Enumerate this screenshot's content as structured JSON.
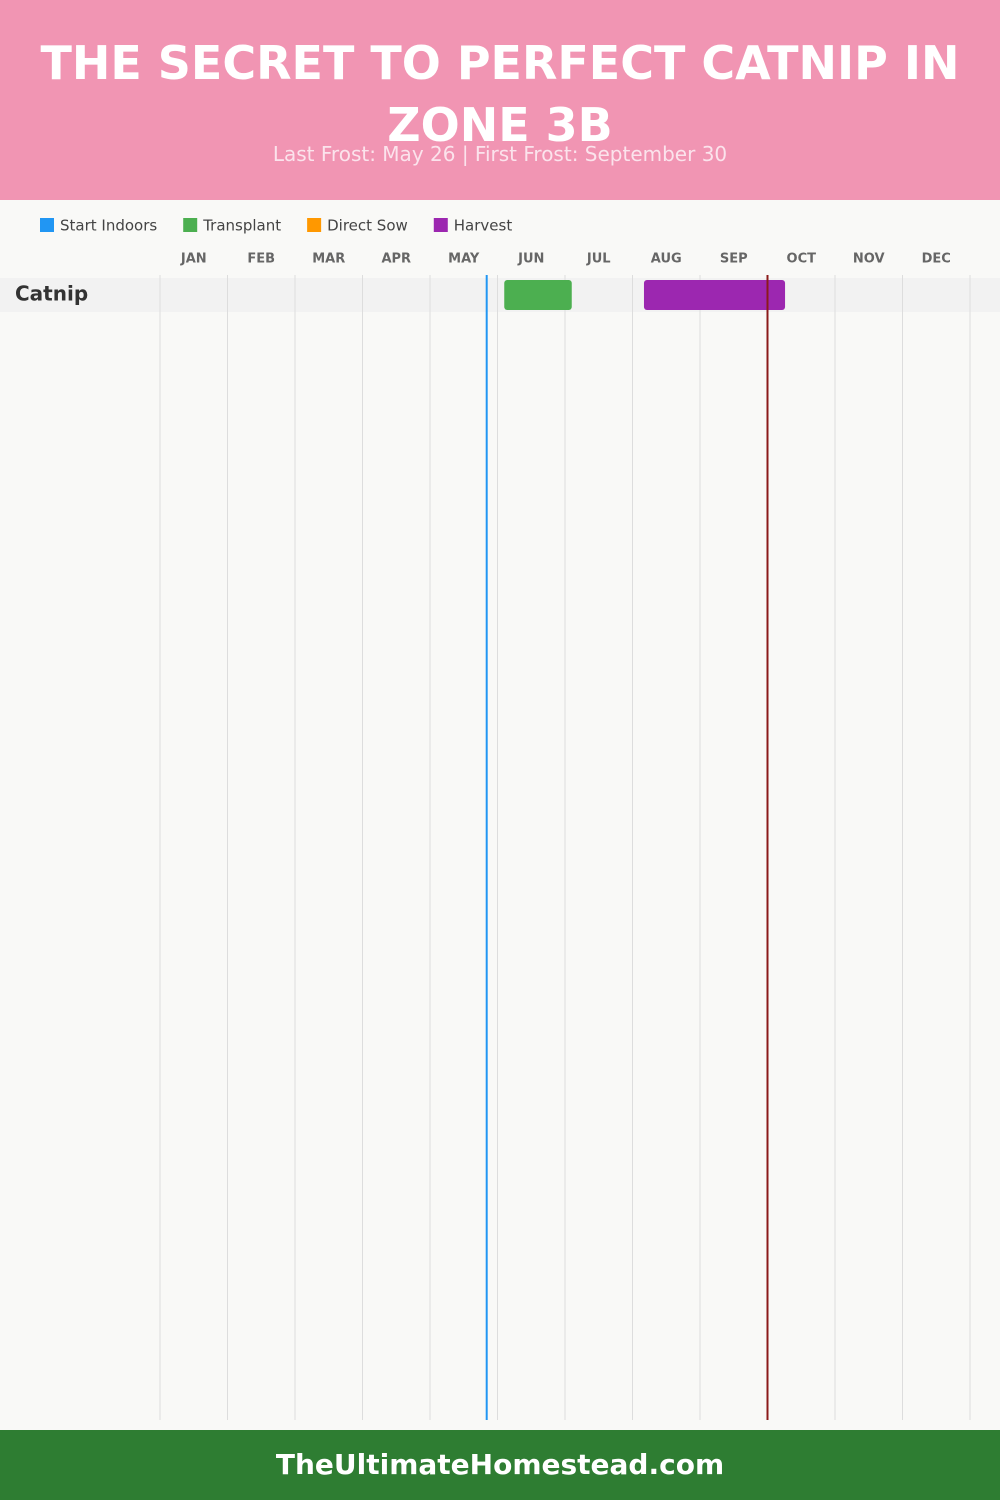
{
  "chart_data": {
    "type": "gantt",
    "title": "THE SECRET TO PERFECT CATNIP IN ZONE 3B",
    "subtitle": "Last Frost: May 26 | First Frost: September 30",
    "months": [
      "JAN",
      "FEB",
      "MAR",
      "APR",
      "MAY",
      "JUN",
      "JUL",
      "AUG",
      "SEP",
      "OCT",
      "NOV",
      "DEC"
    ],
    "xlim": [
      0,
      12
    ],
    "rows": [
      "Catnip"
    ],
    "series": [
      {
        "name": "Start Indoors",
        "color": "#2196f3",
        "start": [
          null
        ],
        "end": [
          null
        ]
      },
      {
        "name": "Transplant",
        "color": "#4caf50",
        "start": [
          5.1
        ],
        "end": [
          6.1
        ]
      },
      {
        "name": "Direct Sow",
        "color": "#ff9800",
        "start": [
          null
        ],
        "end": [
          null
        ]
      },
      {
        "name": "Harvest",
        "color": "#9c27b0",
        "start": [
          7.17
        ],
        "end": [
          9.26
        ]
      }
    ],
    "frost_lines": [
      {
        "x": 4.84,
        "color": "#2196f3"
      },
      {
        "x": 9.0,
        "color": "#8b1a1a"
      }
    ],
    "grid": true
  },
  "footer": "TheUltimateHomestead.com"
}
